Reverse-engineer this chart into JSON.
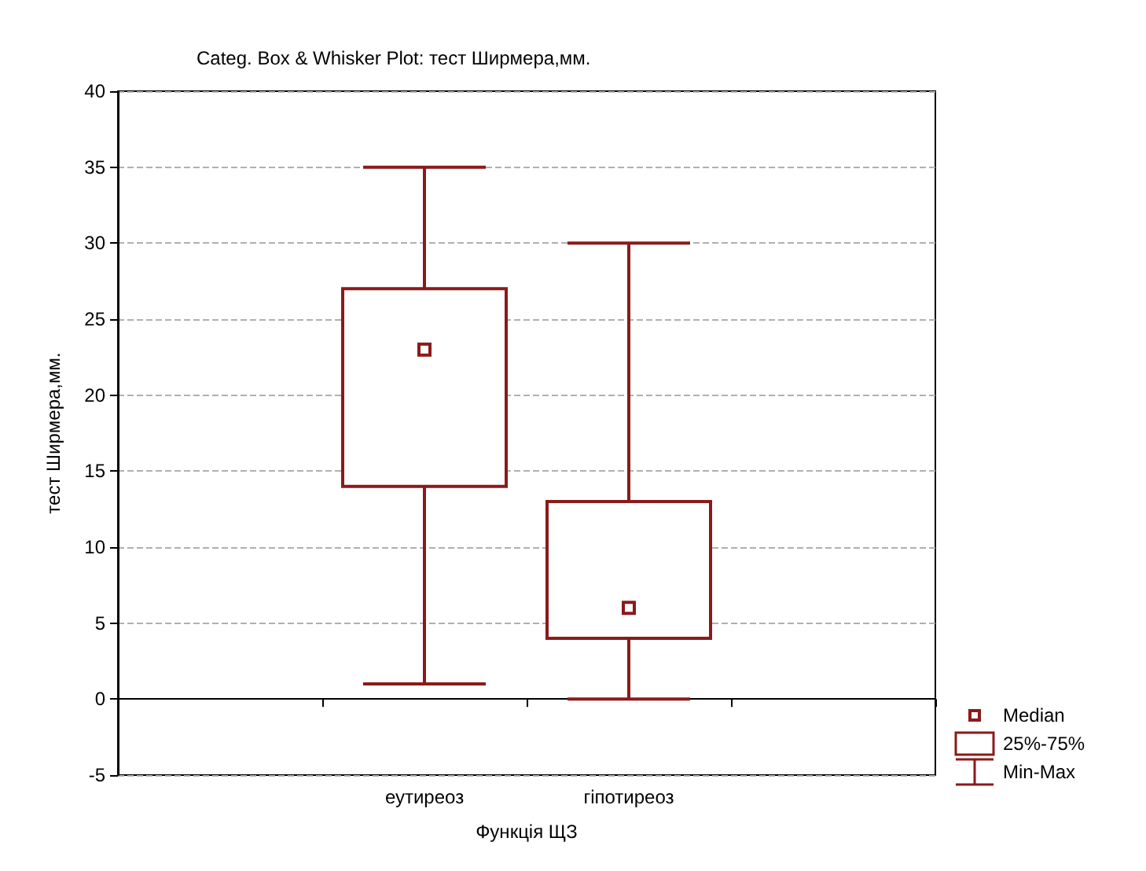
{
  "chart_data": {
    "type": "box",
    "title": "Categ. Box & Whisker Plot: тест Ширмера,мм.",
    "xlabel": "Функція ЩЗ",
    "ylabel": "тест Ширмера,мм.",
    "categories": [
      null,
      "еутиреоз",
      "гіпотиреоз",
      null
    ],
    "boxes": [
      null,
      {
        "low": 1,
        "q1": 14,
        "median": 23,
        "q3": 27,
        "high": 35
      },
      {
        "low": 0,
        "q1": 4,
        "median": 6,
        "q3": 13,
        "high": 30
      },
      null
    ],
    "color": "#8b1a1a",
    "ylim": [
      -5,
      40
    ],
    "yticks": [
      -5,
      0,
      5,
      10,
      15,
      20,
      25,
      30,
      35,
      40
    ],
    "grid": "y",
    "annotations": [
      "Median",
      "25%-75%",
      "Min-Max"
    ]
  }
}
